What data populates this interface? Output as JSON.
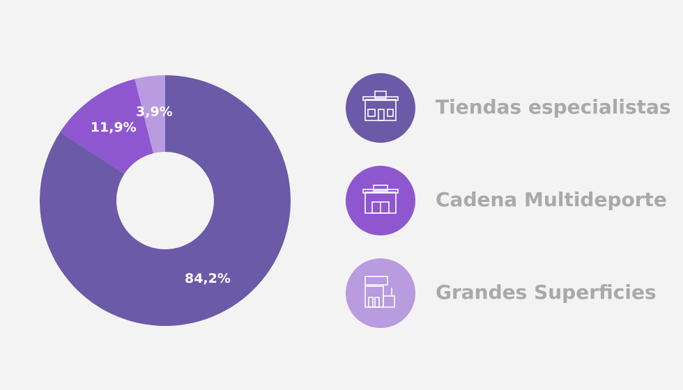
{
  "chart_data": {
    "type": "pie",
    "categories": [
      "Tiendas especialistas",
      "Cadena Multideporte",
      "Grandes Superficies"
    ],
    "values": [
      84.2,
      11.9,
      3.9
    ],
    "value_labels": [
      "84,2%",
      "11,9%",
      "3,9%"
    ],
    "colors": [
      "#6a5aa8",
      "#8e57d0",
      "#b99be0"
    ]
  }
}
